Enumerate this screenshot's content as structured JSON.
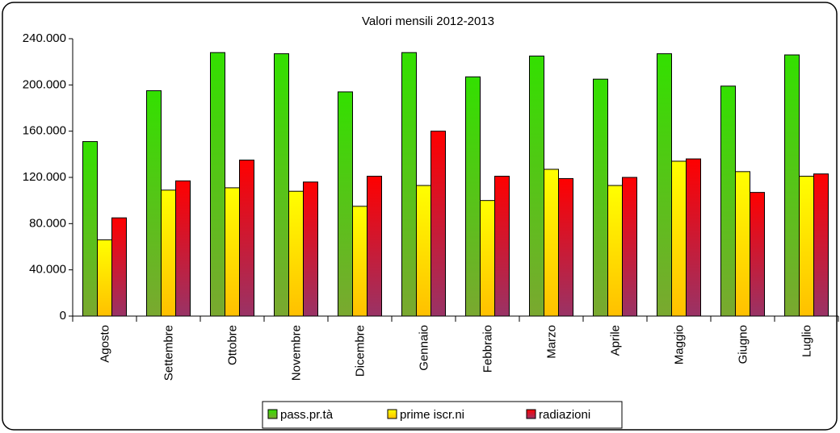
{
  "chart_data": {
    "type": "bar",
    "title": "Valori mensili 2012-2013",
    "categories": [
      "Agosto",
      "Settembre",
      "Ottobre",
      "Novembre",
      "Dicembre",
      "Gennaio",
      "Febbraio",
      "Marzo",
      "Aprile",
      "Maggio",
      "Giugno",
      "Luglio"
    ],
    "series": [
      {
        "name": "pass.pr.tà",
        "color": "#33e000",
        "values": [
          151000,
          195000,
          228000,
          227000,
          194000,
          228000,
          207000,
          225000,
          205000,
          227000,
          199000,
          226000
        ]
      },
      {
        "name": "prime iscr.ni",
        "color": "#ffff00",
        "values": [
          66000,
          109000,
          111000,
          108000,
          95000,
          113000,
          100000,
          127000,
          113000,
          134000,
          125000,
          121000
        ]
      },
      {
        "name": "radiazioni",
        "color": "#ff0000",
        "values": [
          85000,
          117000,
          135000,
          116000,
          121000,
          160000,
          121000,
          119000,
          120000,
          136000,
          107000,
          123000
        ]
      }
    ],
    "ylim": [
      0,
      240000
    ],
    "yticks": [
      0,
      {
        "value": 40000,
        "label": "40.000"
      },
      {
        "value": 80000,
        "label": "80.000"
      },
      {
        "value": 120000,
        "label": "120.000"
      },
      {
        "value": 160000,
        "label": "160.000"
      },
      {
        "value": 200000,
        "label": "200.000"
      },
      {
        "value": 240000,
        "label": "240.000"
      }
    ],
    "grid": false,
    "legend": "bottom"
  }
}
